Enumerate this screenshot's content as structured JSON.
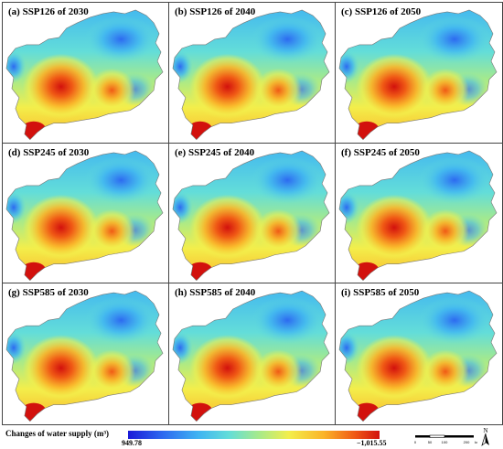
{
  "panels": [
    {
      "title": "(a) SSP126 of 2030"
    },
    {
      "title": "(b) SSP126 of 2040"
    },
    {
      "title": "(c) SSP126 of 2050"
    },
    {
      "title": "(d) SSP245 of 2030"
    },
    {
      "title": "(e) SSP245 of 2040"
    },
    {
      "title": "(f) SSP245 of 2050"
    },
    {
      "title": "(g) SSP585 of 2030"
    },
    {
      "title": "(h) SSP585 of 2040"
    },
    {
      "title": "(i) SSP585 of 2050"
    }
  ],
  "legend": {
    "title": "Changes of water supply (m³)",
    "min_label": "949.78",
    "max_label": "−1,015.55",
    "colors": [
      "#1a1ad8",
      "#2d6af0",
      "#3fb4f2",
      "#63ddd9",
      "#a6ea8b",
      "#f3ee4b",
      "#fbb327",
      "#f05a15",
      "#d2110d"
    ]
  },
  "scale_bar": {
    "ticks": [
      "0",
      "50",
      "100",
      "200"
    ],
    "unit": "km"
  },
  "north_arrow": {
    "label": "N",
    "icon": "north-arrow-icon"
  }
}
